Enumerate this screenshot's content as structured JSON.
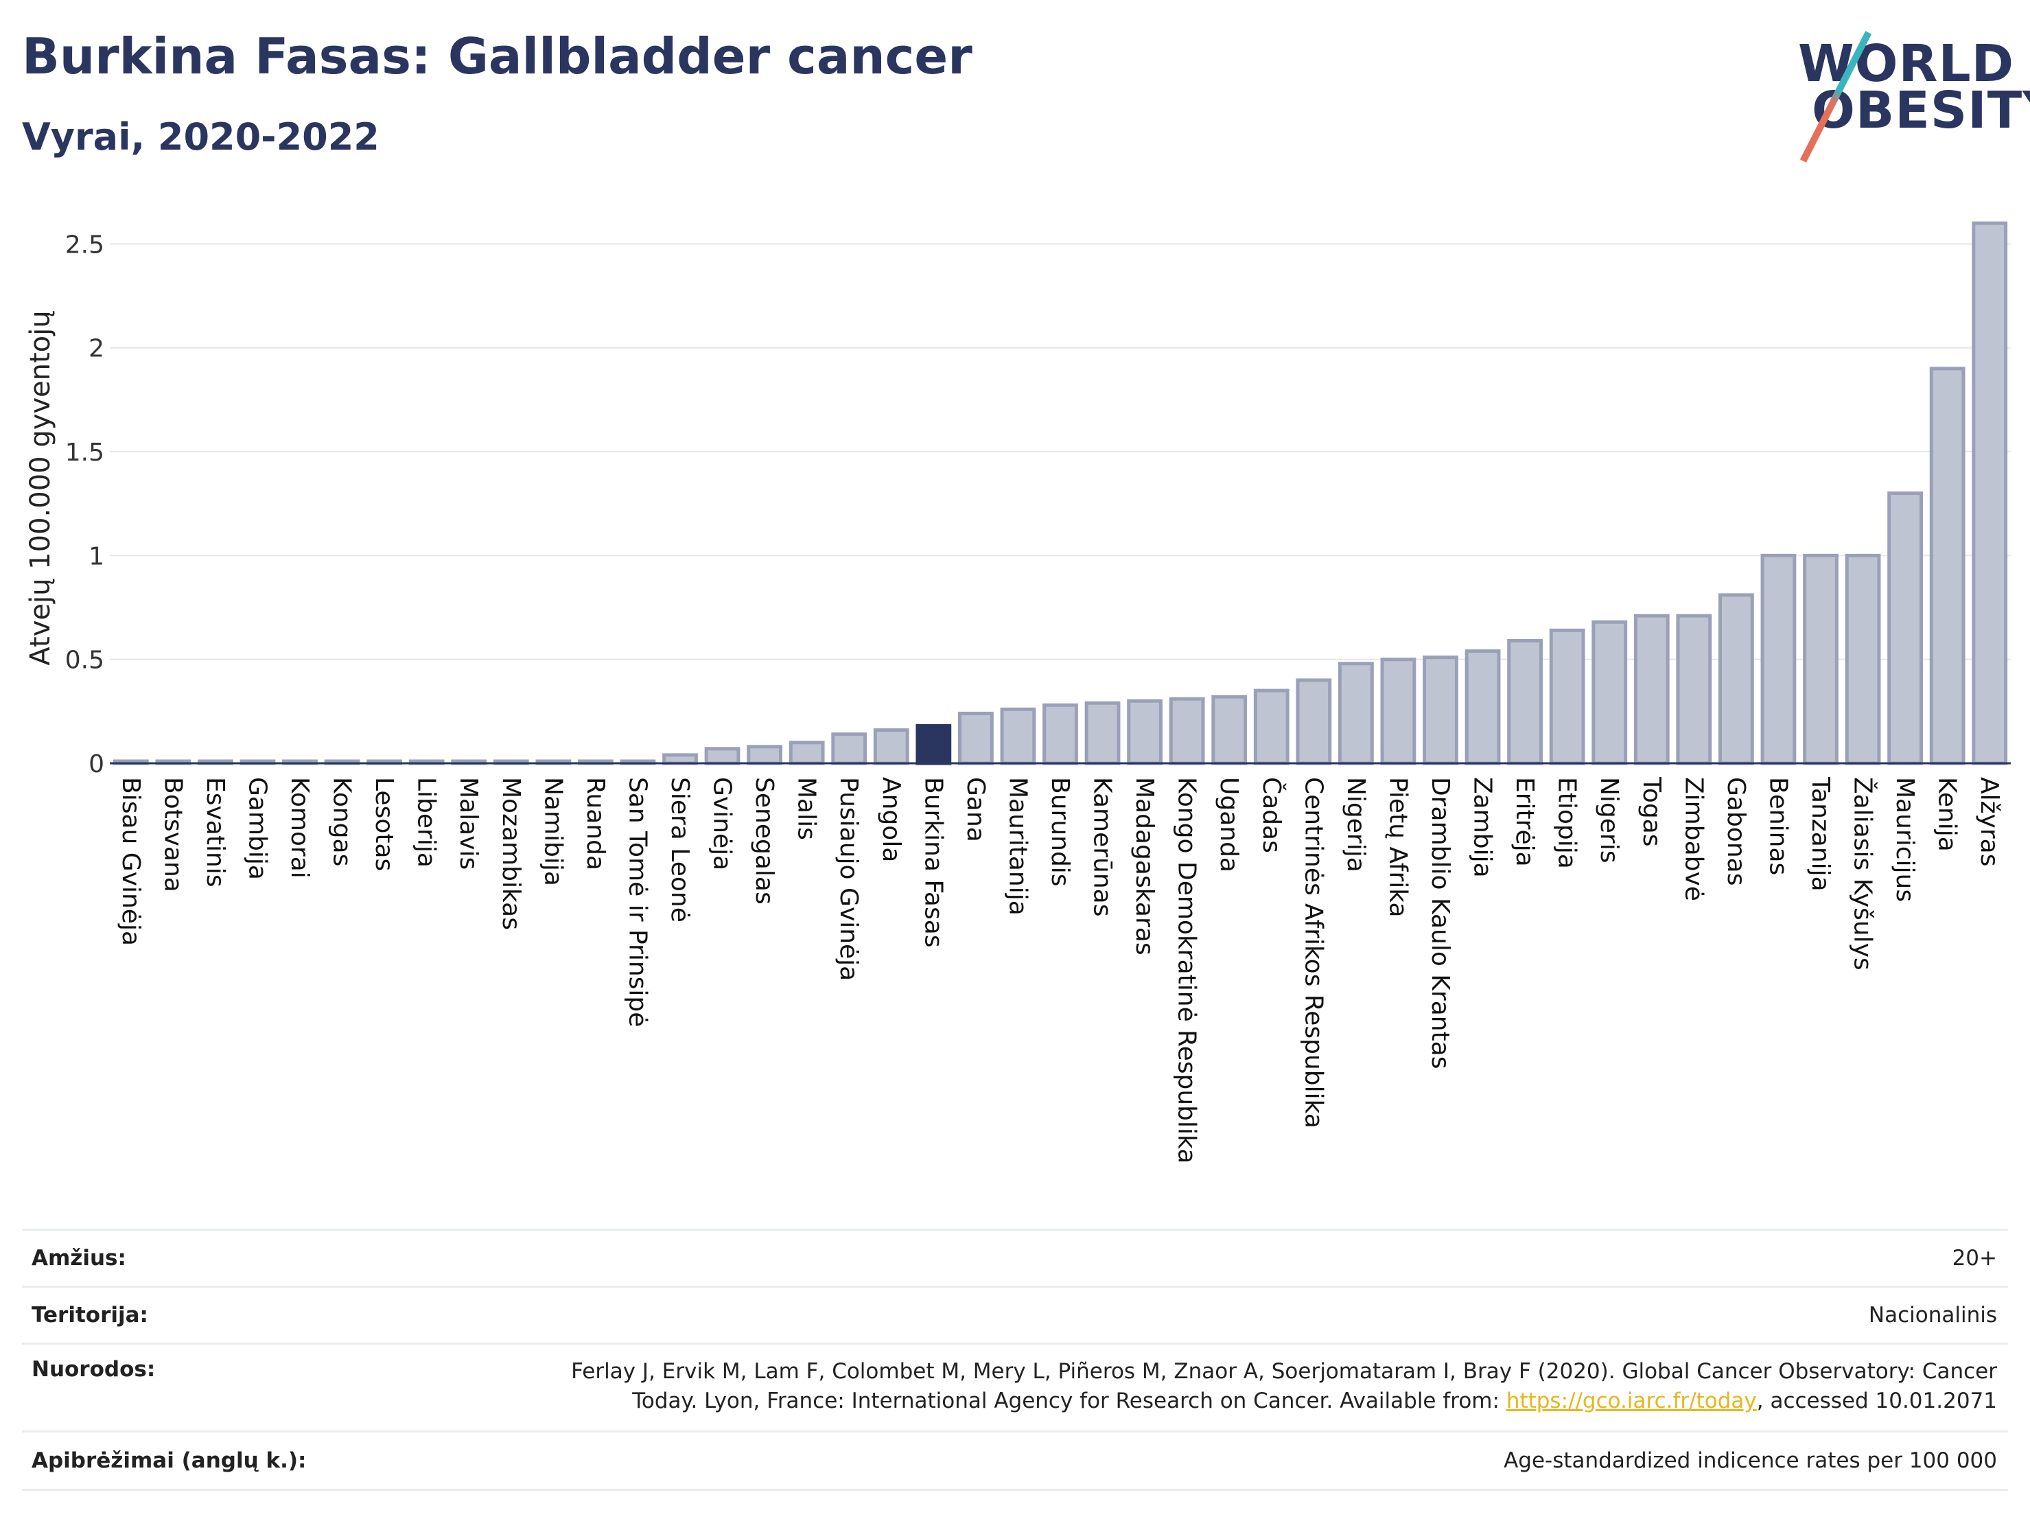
{
  "header": {
    "title": "Burkina Fasas: Gallbladder cancer",
    "subtitle": "Vyrai, 2020-2022"
  },
  "logo": {
    "line1": "WORLD",
    "line2": "OBESITY"
  },
  "colors": {
    "bar": "#bfc4d3",
    "bar_border": "#9aa0b8",
    "highlight": "#2a3560",
    "grid": "#e4e8ec",
    "link": "#e9b51e"
  },
  "chart_data": {
    "type": "bar",
    "ylabel": "Atvejų 100.000 gyventojų",
    "ylim": [
      0,
      2.65
    ],
    "yticks": [
      0,
      0.5,
      1,
      1.5,
      2,
      2.5
    ],
    "yticklabels": [
      "0",
      "0.5",
      "1",
      "1.5",
      "2",
      "2.5"
    ],
    "grid": true,
    "highlight": "Burkina Fasas",
    "categories": [
      "Bisau Gvinėja",
      "Botsvana",
      "Esvatinis",
      "Gambija",
      "Komorai",
      "Kongas",
      "Lesotas",
      "Liberija",
      "Malavis",
      "Mozambikas",
      "Namibija",
      "Ruanda",
      "San Tomė ir Prinsipė",
      "Siera Leonė",
      "Gvinėja",
      "Senegalas",
      "Malis",
      "Pusiaujo Gvinėja",
      "Angola",
      "Burkina Fasas",
      "Gana",
      "Mauritanija",
      "Burundis",
      "Kamerūnas",
      "Madagaskaras",
      "Kongo Demokratinė Respublika",
      "Uganda",
      "Čadas",
      "Centrinės Afrikos Respublika",
      "Nigerija",
      "Pietų Afrika",
      "Dramblio Kaulo Krantas",
      "Zambija",
      "Eritrėja",
      "Etiopija",
      "Nigeris",
      "Togas",
      "Zimbabvė",
      "Gabonas",
      "Beninas",
      "Tanzanija",
      "Žaliasis Kyšulys",
      "Mauricijus",
      "Kenija",
      "Alžyras"
    ],
    "values": [
      0.01,
      0.01,
      0.01,
      0.01,
      0.01,
      0.01,
      0.01,
      0.01,
      0.01,
      0.01,
      0.01,
      0.01,
      0.01,
      0.04,
      0.07,
      0.08,
      0.1,
      0.14,
      0.16,
      0.18,
      0.24,
      0.26,
      0.28,
      0.29,
      0.3,
      0.31,
      0.32,
      0.35,
      0.4,
      0.48,
      0.5,
      0.51,
      0.54,
      0.59,
      0.64,
      0.68,
      0.71,
      0.71,
      0.81,
      1.0,
      1.0,
      1.0,
      1.3,
      1.9,
      2.6
    ]
  },
  "info": {
    "age_label": "Amžius:",
    "age_value": "20+",
    "territory_label": "Teritorija:",
    "territory_value": "Nacionalinis",
    "refs_label": "Nuorodos:",
    "refs_line1": "Ferlay J, Ervik M, Lam F, Colombet M, Mery L, Piñeros M, Znaor A, Soerjomataram I, Bray F (2020). Global Cancer Observatory: Cancer",
    "refs_line2_pre": "Today. Lyon, France: International Agency for Research on Cancer. Available from: ",
    "refs_link": "https://gco.iarc.fr/today",
    "refs_line2_post": ", accessed 10.01.2071",
    "defs_label": "Apibrėžimai (anglų k.):",
    "defs_value": "Age-standardized indicence rates per 100 000"
  }
}
